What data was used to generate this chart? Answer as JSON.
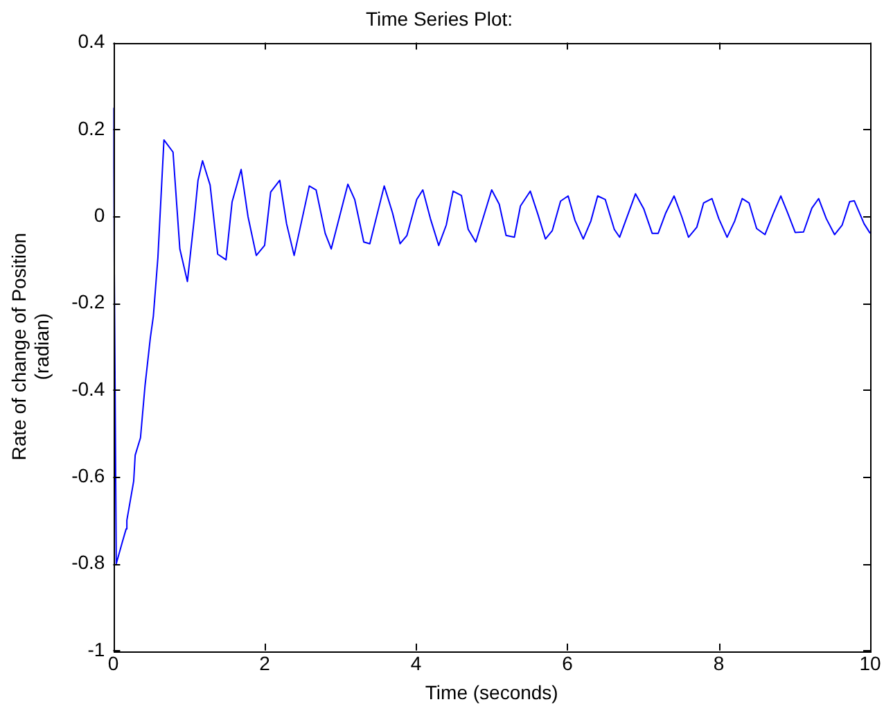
{
  "chart_data": {
    "type": "line",
    "title": "Time Series Plot:",
    "xlabel": "Time (seconds)",
    "ylabel": "Rate of change of Position\n(radian)",
    "xlim": [
      0,
      10
    ],
    "ylim": [
      -1,
      0.4
    ],
    "xticks": [
      0,
      2,
      4,
      6,
      8,
      10
    ],
    "yticks": [
      -1,
      -0.8,
      -0.6,
      -0.4,
      -0.2,
      0,
      0.2,
      0.4
    ],
    "grid": false,
    "legend": false,
    "marker": "none",
    "line_style": "solid",
    "series": [
      {
        "color": "#0000ff",
        "x": [
          0,
          0.04,
          0.12,
          0.17,
          0.18,
          0.27,
          0.29,
          0.36,
          0.42,
          0.49,
          0.53,
          0.59,
          0.67,
          0.79,
          0.88,
          0.98,
          1.07,
          1.12,
          1.18,
          1.28,
          1.38,
          1.49,
          1.57,
          1.69,
          1.78,
          1.89,
          2.0,
          2.08,
          2.2,
          2.29,
          2.39,
          2.59,
          2.68,
          2.8,
          2.88,
          3.1,
          3.19,
          3.31,
          3.39,
          3.58,
          3.69,
          3.79,
          3.88,
          4.01,
          4.09,
          4.19,
          4.3,
          4.4,
          4.49,
          4.6,
          4.69,
          4.79,
          5.0,
          5.1,
          5.19,
          5.3,
          5.38,
          5.51,
          5.61,
          5.71,
          5.8,
          5.91,
          6.01,
          6.1,
          6.21,
          6.31,
          6.4,
          6.5,
          6.62,
          6.69,
          6.9,
          7.01,
          7.12,
          7.2,
          7.3,
          7.41,
          7.51,
          7.6,
          7.71,
          7.8,
          7.91,
          8.0,
          8.11,
          8.21,
          8.31,
          8.4,
          8.5,
          8.61,
          8.72,
          8.82,
          8.91,
          9.01,
          9.12,
          9.23,
          9.32,
          9.42,
          9.53,
          9.63,
          9.73,
          9.79,
          9.92,
          10.0
        ],
        "values": [
          0.25,
          -0.8,
          -0.75,
          -0.72,
          -0.7,
          -0.61,
          -0.55,
          -0.51,
          -0.39,
          -0.28,
          -0.23,
          -0.095,
          0.176,
          0.148,
          -0.075,
          -0.15,
          -0.006,
          0.083,
          0.128,
          0.072,
          -0.087,
          -0.1,
          0.033,
          0.108,
          0.0,
          -0.09,
          -0.067,
          0.056,
          0.083,
          -0.017,
          -0.09,
          0.07,
          0.061,
          -0.039,
          -0.075,
          0.074,
          0.039,
          -0.059,
          -0.063,
          0.07,
          0.008,
          -0.063,
          -0.044,
          0.039,
          0.061,
          -0.005,
          -0.067,
          -0.02,
          0.058,
          0.048,
          -0.03,
          -0.059,
          0.061,
          0.028,
          -0.044,
          -0.048,
          0.024,
          0.058,
          0.005,
          -0.052,
          -0.033,
          0.035,
          0.047,
          -0.009,
          -0.052,
          -0.011,
          0.047,
          0.039,
          -0.03,
          -0.048,
          0.052,
          0.017,
          -0.039,
          -0.039,
          0.008,
          0.047,
          0.0,
          -0.048,
          -0.025,
          0.031,
          0.041,
          -0.005,
          -0.048,
          -0.011,
          0.041,
          0.031,
          -0.028,
          -0.042,
          0.006,
          0.047,
          0.008,
          -0.037,
          -0.036,
          0.019,
          0.041,
          -0.005,
          -0.042,
          -0.02,
          0.034,
          0.036,
          -0.017,
          -0.039
        ]
      }
    ]
  }
}
